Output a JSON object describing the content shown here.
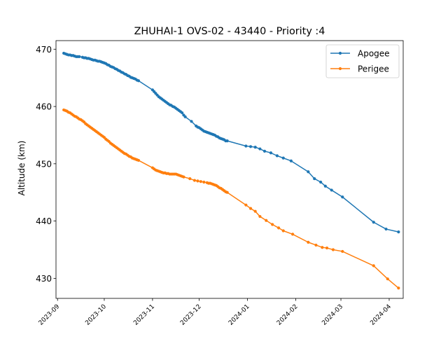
{
  "chart_data": {
    "type": "line",
    "title": "ZHUHAI-1 OVS-02 - 43440 - Priority :4",
    "xlabel": "",
    "ylabel": "Altitude (km)",
    "xlim": [
      "2023-08-31",
      "2024-04-10"
    ],
    "ylim": [
      426.5,
      471.5
    ],
    "x_ticks": [
      "2023-09",
      "2023-10",
      "2023-11",
      "2023-12",
      "2024-01",
      "2024-02",
      "2024-03",
      "2024-04"
    ],
    "y_ticks": [
      430,
      440,
      450,
      460,
      470
    ],
    "grid": false,
    "legend_position": "top-right",
    "series": [
      {
        "name": "Apogee",
        "color": "#1f77b4",
        "points": [
          [
            "2023-09-05",
            469.3
          ],
          [
            "2023-09-06",
            469.2
          ],
          [
            "2023-09-07",
            469.1
          ],
          [
            "2023-09-08",
            469.0
          ],
          [
            "2023-09-09",
            469.0
          ],
          [
            "2023-09-10",
            468.9
          ],
          [
            "2023-09-11",
            468.9
          ],
          [
            "2023-09-12",
            468.8
          ],
          [
            "2023-09-13",
            468.7
          ],
          [
            "2023-09-14",
            468.7
          ],
          [
            "2023-09-15",
            468.7
          ],
          [
            "2023-09-17",
            468.6
          ],
          [
            "2023-09-18",
            468.5
          ],
          [
            "2023-09-19",
            468.5
          ],
          [
            "2023-09-20",
            468.4
          ],
          [
            "2023-09-21",
            468.4
          ],
          [
            "2023-09-22",
            468.3
          ],
          [
            "2023-09-23",
            468.2
          ],
          [
            "2023-09-24",
            468.1
          ],
          [
            "2023-09-25",
            468.1
          ],
          [
            "2023-09-26",
            468.0
          ],
          [
            "2023-09-27",
            467.9
          ],
          [
            "2023-09-28",
            467.9
          ],
          [
            "2023-09-29",
            467.8
          ],
          [
            "2023-09-30",
            467.7
          ],
          [
            "2023-10-01",
            467.6
          ],
          [
            "2023-10-02",
            467.5
          ],
          [
            "2023-10-03",
            467.3
          ],
          [
            "2023-10-04",
            467.2
          ],
          [
            "2023-10-05",
            467.0
          ],
          [
            "2023-10-06",
            466.9
          ],
          [
            "2023-10-07",
            466.8
          ],
          [
            "2023-10-08",
            466.6
          ],
          [
            "2023-10-09",
            466.5
          ],
          [
            "2023-10-10",
            466.3
          ],
          [
            "2023-10-11",
            466.2
          ],
          [
            "2023-10-12",
            466.0
          ],
          [
            "2023-10-13",
            465.9
          ],
          [
            "2023-10-14",
            465.7
          ],
          [
            "2023-10-15",
            465.6
          ],
          [
            "2023-10-16",
            465.4
          ],
          [
            "2023-10-17",
            465.3
          ],
          [
            "2023-10-18",
            465.1
          ],
          [
            "2023-10-19",
            465.0
          ],
          [
            "2023-10-20",
            464.9
          ],
          [
            "2023-10-21",
            464.8
          ],
          [
            "2023-10-22",
            464.6
          ],
          [
            "2023-10-23",
            464.5
          ],
          [
            "2023-11-01",
            462.9
          ],
          [
            "2023-11-02",
            462.6
          ],
          [
            "2023-11-03",
            462.3
          ],
          [
            "2023-11-04",
            462.0
          ],
          [
            "2023-11-05",
            461.7
          ],
          [
            "2023-11-06",
            461.5
          ],
          [
            "2023-11-07",
            461.3
          ],
          [
            "2023-11-08",
            461.1
          ],
          [
            "2023-11-09",
            460.9
          ],
          [
            "2023-11-10",
            460.7
          ],
          [
            "2023-11-11",
            460.5
          ],
          [
            "2023-11-12",
            460.3
          ],
          [
            "2023-11-13",
            460.2
          ],
          [
            "2023-11-14",
            460.0
          ],
          [
            "2023-11-15",
            459.9
          ],
          [
            "2023-11-16",
            459.7
          ],
          [
            "2023-11-17",
            459.5
          ],
          [
            "2023-11-18",
            459.3
          ],
          [
            "2023-11-19",
            459.1
          ],
          [
            "2023-11-20",
            458.9
          ],
          [
            "2023-11-21",
            458.5
          ],
          [
            "2023-11-22",
            458.2
          ],
          [
            "2023-11-26",
            457.4
          ],
          [
            "2023-11-29",
            456.6
          ],
          [
            "2023-11-30",
            456.4
          ],
          [
            "2023-12-01",
            456.3
          ],
          [
            "2023-12-02",
            456.1
          ],
          [
            "2023-12-03",
            455.9
          ],
          [
            "2023-12-04",
            455.7
          ],
          [
            "2023-12-05",
            455.6
          ],
          [
            "2023-12-06",
            455.5
          ],
          [
            "2023-12-07",
            455.4
          ],
          [
            "2023-12-08",
            455.3
          ],
          [
            "2023-12-09",
            455.2
          ],
          [
            "2023-12-10",
            455.1
          ],
          [
            "2023-12-11",
            455.0
          ],
          [
            "2023-12-12",
            454.8
          ],
          [
            "2023-12-13",
            454.7
          ],
          [
            "2023-12-14",
            454.5
          ],
          [
            "2023-12-15",
            454.4
          ],
          [
            "2023-12-16",
            454.3
          ],
          [
            "2023-12-17",
            454.2
          ],
          [
            "2023-12-18",
            454.0
          ],
          [
            "2023-12-19",
            454.0
          ],
          [
            "2023-12-31",
            453.1
          ],
          [
            "2024-01-03",
            453.0
          ],
          [
            "2024-01-06",
            452.9
          ],
          [
            "2024-01-09",
            452.6
          ],
          [
            "2024-01-12",
            452.2
          ],
          [
            "2024-01-16",
            451.9
          ],
          [
            "2024-01-20",
            451.4
          ],
          [
            "2024-01-24",
            451.0
          ],
          [
            "2024-01-29",
            450.5
          ],
          [
            "2024-02-09",
            448.6
          ],
          [
            "2024-02-13",
            447.4
          ],
          [
            "2024-02-17",
            446.8
          ],
          [
            "2024-02-20",
            446.1
          ],
          [
            "2024-02-24",
            445.4
          ],
          [
            "2024-03-02",
            444.2
          ],
          [
            "2024-03-22",
            439.8
          ],
          [
            "2024-03-30",
            438.6
          ],
          [
            "2024-04-07",
            438.1
          ]
        ]
      },
      {
        "name": "Perigee",
        "color": "#ff7f0e",
        "points": [
          [
            "2023-09-05",
            459.4
          ],
          [
            "2023-09-06",
            459.3
          ],
          [
            "2023-09-07",
            459.2
          ],
          [
            "2023-09-08",
            459.0
          ],
          [
            "2023-09-09",
            458.9
          ],
          [
            "2023-09-10",
            458.7
          ],
          [
            "2023-09-11",
            458.5
          ],
          [
            "2023-09-12",
            458.3
          ],
          [
            "2023-09-13",
            458.2
          ],
          [
            "2023-09-14",
            458.0
          ],
          [
            "2023-09-15",
            457.8
          ],
          [
            "2023-09-16",
            457.7
          ],
          [
            "2023-09-17",
            457.5
          ],
          [
            "2023-09-18",
            457.3
          ],
          [
            "2023-09-19",
            457.0
          ],
          [
            "2023-09-20",
            456.8
          ],
          [
            "2023-09-21",
            456.6
          ],
          [
            "2023-09-22",
            456.4
          ],
          [
            "2023-09-23",
            456.2
          ],
          [
            "2023-09-24",
            456.0
          ],
          [
            "2023-09-25",
            455.8
          ],
          [
            "2023-09-26",
            455.6
          ],
          [
            "2023-09-27",
            455.4
          ],
          [
            "2023-09-28",
            455.2
          ],
          [
            "2023-09-29",
            455.0
          ],
          [
            "2023-09-30",
            454.8
          ],
          [
            "2023-10-01",
            454.6
          ],
          [
            "2023-10-02",
            454.3
          ],
          [
            "2023-10-03",
            454.1
          ],
          [
            "2023-10-04",
            453.9
          ],
          [
            "2023-10-05",
            453.6
          ],
          [
            "2023-10-06",
            453.4
          ],
          [
            "2023-10-07",
            453.2
          ],
          [
            "2023-10-08",
            453.0
          ],
          [
            "2023-10-09",
            452.8
          ],
          [
            "2023-10-10",
            452.6
          ],
          [
            "2023-10-11",
            452.4
          ],
          [
            "2023-10-12",
            452.2
          ],
          [
            "2023-10-13",
            452.0
          ],
          [
            "2023-10-14",
            451.8
          ],
          [
            "2023-10-15",
            451.7
          ],
          [
            "2023-10-16",
            451.5
          ],
          [
            "2023-10-17",
            451.3
          ],
          [
            "2023-10-18",
            451.2
          ],
          [
            "2023-10-19",
            451.0
          ],
          [
            "2023-10-20",
            450.9
          ],
          [
            "2023-10-21",
            450.8
          ],
          [
            "2023-10-22",
            450.7
          ],
          [
            "2023-10-23",
            450.6
          ],
          [
            "2023-11-01",
            449.3
          ],
          [
            "2023-11-02",
            449.1
          ],
          [
            "2023-11-03",
            448.9
          ],
          [
            "2023-11-04",
            448.8
          ],
          [
            "2023-11-05",
            448.7
          ],
          [
            "2023-11-06",
            448.6
          ],
          [
            "2023-11-07",
            448.5
          ],
          [
            "2023-11-08",
            448.4
          ],
          [
            "2023-11-09",
            448.4
          ],
          [
            "2023-11-10",
            448.3
          ],
          [
            "2023-11-11",
            448.3
          ],
          [
            "2023-11-12",
            448.2
          ],
          [
            "2023-11-13",
            448.2
          ],
          [
            "2023-11-14",
            448.2
          ],
          [
            "2023-11-15",
            448.2
          ],
          [
            "2023-11-16",
            448.2
          ],
          [
            "2023-11-17",
            448.1
          ],
          [
            "2023-11-18",
            448.0
          ],
          [
            "2023-11-19",
            447.9
          ],
          [
            "2023-11-20",
            447.8
          ],
          [
            "2023-11-21",
            447.7
          ],
          [
            "2023-11-25",
            447.4
          ],
          [
            "2023-11-28",
            447.1
          ],
          [
            "2023-11-30",
            447.0
          ],
          [
            "2023-12-02",
            446.9
          ],
          [
            "2023-12-04",
            446.8
          ],
          [
            "2023-12-06",
            446.7
          ],
          [
            "2023-12-07",
            446.6
          ],
          [
            "2023-12-08",
            446.6
          ],
          [
            "2023-12-09",
            446.5
          ],
          [
            "2023-12-10",
            446.4
          ],
          [
            "2023-12-11",
            446.3
          ],
          [
            "2023-12-12",
            446.2
          ],
          [
            "2023-12-13",
            446.0
          ],
          [
            "2023-12-14",
            445.8
          ],
          [
            "2023-12-15",
            445.7
          ],
          [
            "2023-12-16",
            445.5
          ],
          [
            "2023-12-17",
            445.3
          ],
          [
            "2023-12-18",
            445.1
          ],
          [
            "2023-12-19",
            445.0
          ],
          [
            "2023-12-31",
            442.8
          ],
          [
            "2024-01-03",
            442.2
          ],
          [
            "2024-01-06",
            441.7
          ],
          [
            "2024-01-09",
            440.8
          ],
          [
            "2024-01-13",
            440.1
          ],
          [
            "2024-01-17",
            439.4
          ],
          [
            "2024-01-21",
            438.8
          ],
          [
            "2024-01-24",
            438.3
          ],
          [
            "2024-01-30",
            437.7
          ],
          [
            "2024-02-09",
            436.3
          ],
          [
            "2024-02-14",
            435.8
          ],
          [
            "2024-02-18",
            435.4
          ],
          [
            "2024-02-21",
            435.3
          ],
          [
            "2024-02-25",
            435.0
          ],
          [
            "2024-03-02",
            434.7
          ],
          [
            "2024-03-22",
            432.2
          ],
          [
            "2024-03-31",
            429.9
          ],
          [
            "2024-04-07",
            428.3
          ]
        ]
      }
    ]
  }
}
